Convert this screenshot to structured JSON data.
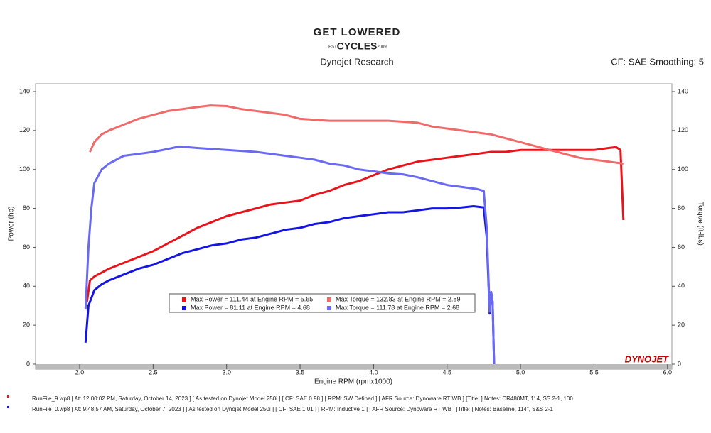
{
  "chart_data": {
    "type": "line",
    "logo": {
      "top": "GET LOWERED",
      "est": "EST",
      "year": "2009",
      "bottom": "CYCLES"
    },
    "subtitle": "Dynojet Research",
    "annotation": "CF: SAE Smoothing: 5",
    "xlabel": "Engine RPM (rpmx1000)",
    "ylabel": "Power (hp)",
    "y2label": "Torque (ft-lbs)",
    "brand": "DYNOJET",
    "xlim": [
      1.7,
      6.03
    ],
    "ylim": [
      0,
      144
    ],
    "y2lim": [
      0,
      144
    ],
    "xticks": [
      {
        "value": 2,
        "label": "2.0"
      },
      2.5,
      {
        "value": 3,
        "label": "3.0"
      },
      3.5,
      {
        "value": 4,
        "label": "4.0"
      },
      4.5,
      {
        "value": 5,
        "label": "5.0"
      },
      5.5,
      {
        "value": 6,
        "label": "6.0"
      }
    ],
    "yticks": [
      0,
      20,
      40,
      60,
      80,
      100,
      120,
      140
    ],
    "y2ticks": [
      0,
      20,
      40,
      60,
      80,
      100,
      120,
      140
    ],
    "series": [
      {
        "name": "Max Power = 111.44 at Engine RPM = 5.65",
        "color": "#e8141b",
        "x": [
          2.05,
          2.07,
          2.1,
          2.2,
          2.3,
          2.4,
          2.5,
          2.6,
          2.7,
          2.8,
          2.9,
          3.0,
          3.1,
          3.2,
          3.3,
          3.4,
          3.5,
          3.6,
          3.7,
          3.8,
          3.9,
          4.0,
          4.1,
          4.2,
          4.3,
          4.4,
          4.5,
          4.6,
          4.7,
          4.8,
          4.9,
          5.0,
          5.1,
          5.2,
          5.3,
          5.4,
          5.5,
          5.6,
          5.65,
          5.68,
          5.7
        ],
        "values": [
          32,
          43,
          45,
          49,
          52,
          55,
          58,
          62,
          66,
          70,
          73,
          76,
          78,
          80,
          82,
          83,
          84,
          87,
          89,
          92,
          94,
          97,
          100,
          102,
          104,
          105,
          106,
          107,
          108,
          109,
          109,
          110,
          110,
          110,
          110,
          110,
          110,
          111,
          111.44,
          110,
          74
        ]
      },
      {
        "name": "Max Power = 81.11 at Engine RPM = 4.68",
        "color": "#1515e0",
        "x": [
          2.04,
          2.06,
          2.1,
          2.15,
          2.2,
          2.3,
          2.4,
          2.5,
          2.6,
          2.7,
          2.8,
          2.9,
          3.0,
          3.1,
          3.2,
          3.3,
          3.4,
          3.5,
          3.6,
          3.7,
          3.8,
          3.9,
          4.0,
          4.1,
          4.2,
          4.3,
          4.4,
          4.5,
          4.6,
          4.68,
          4.75,
          4.77,
          4.79,
          4.8,
          4.81,
          4.82
        ],
        "values": [
          11,
          30,
          38,
          41,
          43,
          46,
          49,
          51,
          54,
          57,
          59,
          61,
          62,
          64,
          65,
          67,
          69,
          70,
          72,
          73,
          75,
          76,
          77,
          78,
          78,
          79,
          80,
          80,
          80.5,
          81.11,
          80.5,
          65,
          26,
          37,
          32,
          0
        ]
      },
      {
        "name": "Max Torque = 132.83 at Engine RPM = 2.89",
        "color": "#f06a6a",
        "axis": "y2",
        "x": [
          2.07,
          2.1,
          2.15,
          2.2,
          2.3,
          2.4,
          2.5,
          2.6,
          2.7,
          2.8,
          2.89,
          3.0,
          3.1,
          3.2,
          3.3,
          3.4,
          3.5,
          3.6,
          3.7,
          3.8,
          3.9,
          4.0,
          4.1,
          4.2,
          4.3,
          4.4,
          4.5,
          4.6,
          4.7,
          4.8,
          4.9,
          5.0,
          5.1,
          5.2,
          5.3,
          5.4,
          5.5,
          5.6,
          5.7
        ],
        "values": [
          109,
          114,
          118,
          120,
          123,
          126,
          128,
          130,
          131,
          132,
          132.83,
          132.5,
          131,
          130,
          129,
          128,
          126,
          125.5,
          125,
          125,
          125,
          125,
          125,
          124.5,
          124,
          122,
          121,
          120,
          119,
          118,
          116,
          114,
          112,
          110,
          108,
          106,
          105,
          104,
          103
        ]
      },
      {
        "name": "Max Torque = 111.78 at Engine RPM = 2.68",
        "color": "#6a6af0",
        "axis": "y2",
        "x": [
          2.04,
          2.06,
          2.08,
          2.1,
          2.15,
          2.2,
          2.3,
          2.4,
          2.5,
          2.6,
          2.68,
          2.8,
          2.9,
          3.0,
          3.2,
          3.4,
          3.5,
          3.6,
          3.7,
          3.8,
          3.9,
          4.0,
          4.1,
          4.2,
          4.3,
          4.4,
          4.5,
          4.6,
          4.7,
          4.75,
          4.77,
          4.79,
          4.8,
          4.81,
          4.82
        ],
        "values": [
          28,
          60,
          80,
          93,
          100,
          103,
          107,
          108,
          109,
          110.5,
          111.78,
          111,
          110.5,
          110,
          109,
          107,
          106,
          105,
          103,
          102,
          100,
          99,
          98,
          97.5,
          96,
          94,
          92,
          91,
          90,
          89,
          70,
          27,
          37,
          32,
          0
        ]
      }
    ],
    "footer": [
      "RunFile_9.wp8 [ At: 12:00:02 PM, Saturday, October 14, 2023 ] [ As tested on Dynojet Model 250i ] [ CF: SAE 0.98 ] [ RPM: SW Defined ] [ AFR Source: Dynoware RT WB ] [Title: ]  Notes: CR480MT, 114, SS 2-1, 100",
      "RunFile_0.wp8 [ At: 9:48:57 AM, Saturday, October 7, 2023 ] [ As tested on Dynojet Model 250i ] [ CF: SAE 1.01 ] [ RPM: Inductive 1 ] [ AFR Source: Dynoware RT WB ] [Title: ]  Notes: Baseline, 114\", S&S 2-1"
    ]
  }
}
